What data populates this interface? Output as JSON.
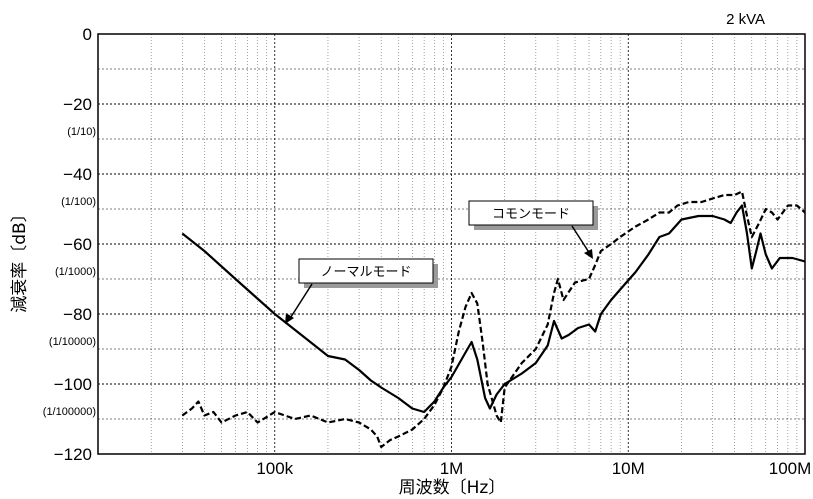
{
  "chart_data": {
    "type": "line",
    "corner_label": "2 kVA",
    "xlabel": "周波数〔Hz〕",
    "ylabel": "減衰率〔dB〕",
    "xscale": "log",
    "xlim": [
      10000,
      100000000
    ],
    "ylim": [
      -120,
      0
    ],
    "grid": true,
    "x_ticks": [
      {
        "value": 100000,
        "label": "100k"
      },
      {
        "value": 1000000,
        "label": "1M"
      },
      {
        "value": 10000000,
        "label": "10M"
      },
      {
        "value": 100000000,
        "label": "100M"
      }
    ],
    "y_ticks": [
      {
        "value": 0,
        "label": "0",
        "sub": ""
      },
      {
        "value": -20,
        "label": "−20",
        "sub": "(1/10)"
      },
      {
        "value": -40,
        "label": "−40",
        "sub": "(1/100)"
      },
      {
        "value": -60,
        "label": "−60",
        "sub": "(1/1000)"
      },
      {
        "value": -80,
        "label": "−80",
        "sub": "(1/10000)"
      },
      {
        "value": -100,
        "label": "−100",
        "sub": "(1/100000)"
      },
      {
        "value": -120,
        "label": "−120",
        "sub": ""
      }
    ],
    "series": [
      {
        "name": "ノーマルモード",
        "style": "solid",
        "color": "#000000",
        "points": [
          [
            30000,
            -57
          ],
          [
            40000,
            -62
          ],
          [
            60000,
            -70
          ],
          [
            100000,
            -80
          ],
          [
            150000,
            -87
          ],
          [
            200000,
            -92
          ],
          [
            250000,
            -93
          ],
          [
            300000,
            -96
          ],
          [
            350000,
            -99
          ],
          [
            400000,
            -101
          ],
          [
            500000,
            -104
          ],
          [
            600000,
            -107
          ],
          [
            700000,
            -108
          ],
          [
            800000,
            -105
          ],
          [
            900000,
            -101
          ],
          [
            1000000,
            -98
          ],
          [
            1200000,
            -91
          ],
          [
            1300000,
            -88
          ],
          [
            1400000,
            -93
          ],
          [
            1550000,
            -104
          ],
          [
            1650000,
            -107
          ],
          [
            1800000,
            -103
          ],
          [
            2000000,
            -100
          ],
          [
            2500000,
            -97
          ],
          [
            3000000,
            -94
          ],
          [
            3500000,
            -89
          ],
          [
            3800000,
            -82
          ],
          [
            4200000,
            -87
          ],
          [
            4600000,
            -86
          ],
          [
            5200000,
            -84
          ],
          [
            6000000,
            -83
          ],
          [
            6500000,
            -85
          ],
          [
            7000000,
            -80
          ],
          [
            8000000,
            -76
          ],
          [
            9000000,
            -73
          ],
          [
            11000000,
            -68
          ],
          [
            13000000,
            -63
          ],
          [
            15000000,
            -58
          ],
          [
            17000000,
            -57
          ],
          [
            20000000,
            -53
          ],
          [
            25000000,
            -52
          ],
          [
            30000000,
            -52
          ],
          [
            35000000,
            -53
          ],
          [
            38000000,
            -54
          ],
          [
            41000000,
            -51
          ],
          [
            44000000,
            -49
          ],
          [
            47000000,
            -57
          ],
          [
            50000000,
            -67
          ],
          [
            53000000,
            -62
          ],
          [
            56000000,
            -57
          ],
          [
            60000000,
            -63
          ],
          [
            65000000,
            -67
          ],
          [
            72000000,
            -64
          ],
          [
            85000000,
            -64
          ],
          [
            100000000,
            -65
          ],
          [
            110000000,
            -66
          ]
        ]
      },
      {
        "name": "コモンモード",
        "style": "dashed",
        "color": "#000000",
        "points": [
          [
            30000,
            -109
          ],
          [
            34000,
            -107
          ],
          [
            37000,
            -105
          ],
          [
            40000,
            -109
          ],
          [
            45000,
            -108
          ],
          [
            50000,
            -111
          ],
          [
            60000,
            -109
          ],
          [
            70000,
            -108
          ],
          [
            80000,
            -111
          ],
          [
            100000,
            -108
          ],
          [
            130000,
            -110
          ],
          [
            160000,
            -109
          ],
          [
            200000,
            -111
          ],
          [
            250000,
            -110
          ],
          [
            300000,
            -111
          ],
          [
            350000,
            -113
          ],
          [
            380000,
            -115
          ],
          [
            400000,
            -118
          ],
          [
            450000,
            -116
          ],
          [
            500000,
            -115
          ],
          [
            600000,
            -113
          ],
          [
            700000,
            -110
          ],
          [
            800000,
            -106
          ],
          [
            900000,
            -101
          ],
          [
            1000000,
            -95
          ],
          [
            1100000,
            -85
          ],
          [
            1200000,
            -78
          ],
          [
            1300000,
            -74
          ],
          [
            1400000,
            -77
          ],
          [
            1500000,
            -88
          ],
          [
            1600000,
            -100
          ],
          [
            1800000,
            -109
          ],
          [
            1900000,
            -111
          ],
          [
            2000000,
            -101
          ],
          [
            2500000,
            -94
          ],
          [
            3000000,
            -90
          ],
          [
            3500000,
            -83
          ],
          [
            3800000,
            -74
          ],
          [
            4000000,
            -70
          ],
          [
            4300000,
            -76
          ],
          [
            5000000,
            -71
          ],
          [
            6000000,
            -70
          ],
          [
            6500000,
            -66
          ],
          [
            7000000,
            -62
          ],
          [
            8000000,
            -60
          ],
          [
            9000000,
            -58
          ],
          [
            11000000,
            -55
          ],
          [
            13000000,
            -53
          ],
          [
            15000000,
            -51
          ],
          [
            17000000,
            -51
          ],
          [
            19000000,
            -49
          ],
          [
            22000000,
            -48
          ],
          [
            26000000,
            -48
          ],
          [
            30000000,
            -47
          ],
          [
            35000000,
            -46
          ],
          [
            40000000,
            -46
          ],
          [
            44000000,
            -45
          ],
          [
            47000000,
            -52
          ],
          [
            50000000,
            -58
          ],
          [
            55000000,
            -54
          ],
          [
            60000000,
            -50
          ],
          [
            65000000,
            -51
          ],
          [
            70000000,
            -53
          ],
          [
            80000000,
            -49
          ],
          [
            90000000,
            -49
          ],
          [
            100000000,
            -51
          ],
          [
            110000000,
            -51
          ]
        ]
      }
    ],
    "annotations": [
      {
        "text": "ノーマルモード",
        "target_series": "ノーマルモード"
      },
      {
        "text": "コモンモード",
        "target_series": "コモンモード"
      }
    ]
  }
}
